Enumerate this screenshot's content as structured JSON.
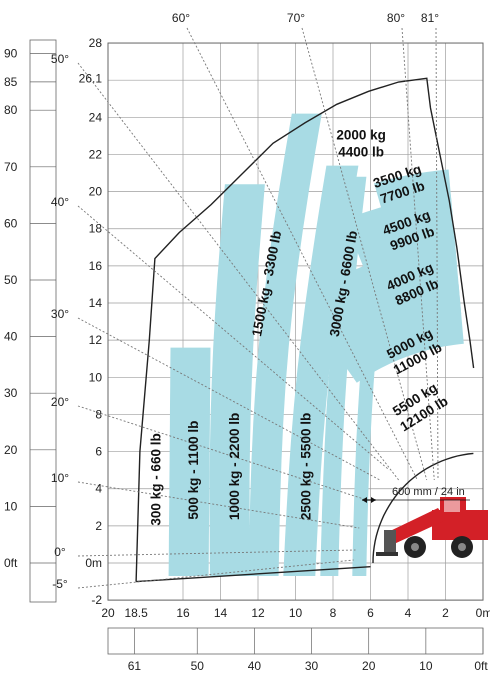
{
  "chart_data": {
    "type": "load-chart",
    "x_axis_m": {
      "ticks": [
        "20",
        "18.5",
        "16",
        "14",
        "12",
        "10",
        "8",
        "6",
        "4",
        "2",
        "0m"
      ]
    },
    "y_axis_m": {
      "ticks": [
        "28",
        "26.1",
        "24",
        "22",
        "20",
        "18",
        "16",
        "14",
        "12",
        "10",
        "8",
        "6",
        "4",
        "2",
        "0m",
        "-2"
      ]
    },
    "feet_scale_left": {
      "ticks": [
        "90",
        "85",
        "80",
        "70",
        "60",
        "50",
        "40",
        "30",
        "20",
        "10",
        "0ft"
      ]
    },
    "feet_scale_bottom": {
      "ticks": [
        "61",
        "50",
        "40",
        "30",
        "20",
        "10",
        "0ft"
      ]
    },
    "boom_angles": [
      "-5°",
      "0°",
      "10°",
      "20°",
      "30°",
      "40°",
      "50°",
      "60°",
      "70°",
      "80°",
      "81°"
    ],
    "annotation": "600 mm / 24 in",
    "load_zones": [
      {
        "kg": 300,
        "lb": 660,
        "label": "300 kg - 660 lb"
      },
      {
        "kg": 500,
        "lb": 1100,
        "label": "500 kg - 1100 lb"
      },
      {
        "kg": 1000,
        "lb": 2200,
        "label": "1000 kg - 2200 lb"
      },
      {
        "kg": 1500,
        "lb": 3300,
        "label": "1500 kg - 3300 lb"
      },
      {
        "kg": 2000,
        "lb": 4400,
        "label_kg": "2000 kg",
        "label_lb": "4400 lb"
      },
      {
        "kg": 2500,
        "lb": 5500,
        "label": "2500 kg - 5500 lb"
      },
      {
        "kg": 3000,
        "lb": 6600,
        "label": "3000 kg - 6600 lb"
      },
      {
        "kg": 3500,
        "lb": 7700,
        "label_kg": "3500 kg",
        "label_lb": "7700 lb"
      },
      {
        "kg": 4500,
        "lb": 9900,
        "label_kg": "4500 kg",
        "label_lb": "9900 lb"
      },
      {
        "kg": 4000,
        "lb": 8800,
        "label_kg": "4000 kg",
        "label_lb": "8800 lb"
      },
      {
        "kg": 5000,
        "lb": 11000,
        "label_kg": "5000 kg",
        "label_lb": "11000 lb"
      },
      {
        "kg": 5500,
        "lb": 12100,
        "label_kg": "5500 kg",
        "label_lb": "12100 lb"
      }
    ],
    "colors": {
      "band": "#a8dbe4",
      "grid": "#9e9e9e",
      "envelope": "#222222",
      "machine": "#d32027"
    }
  }
}
